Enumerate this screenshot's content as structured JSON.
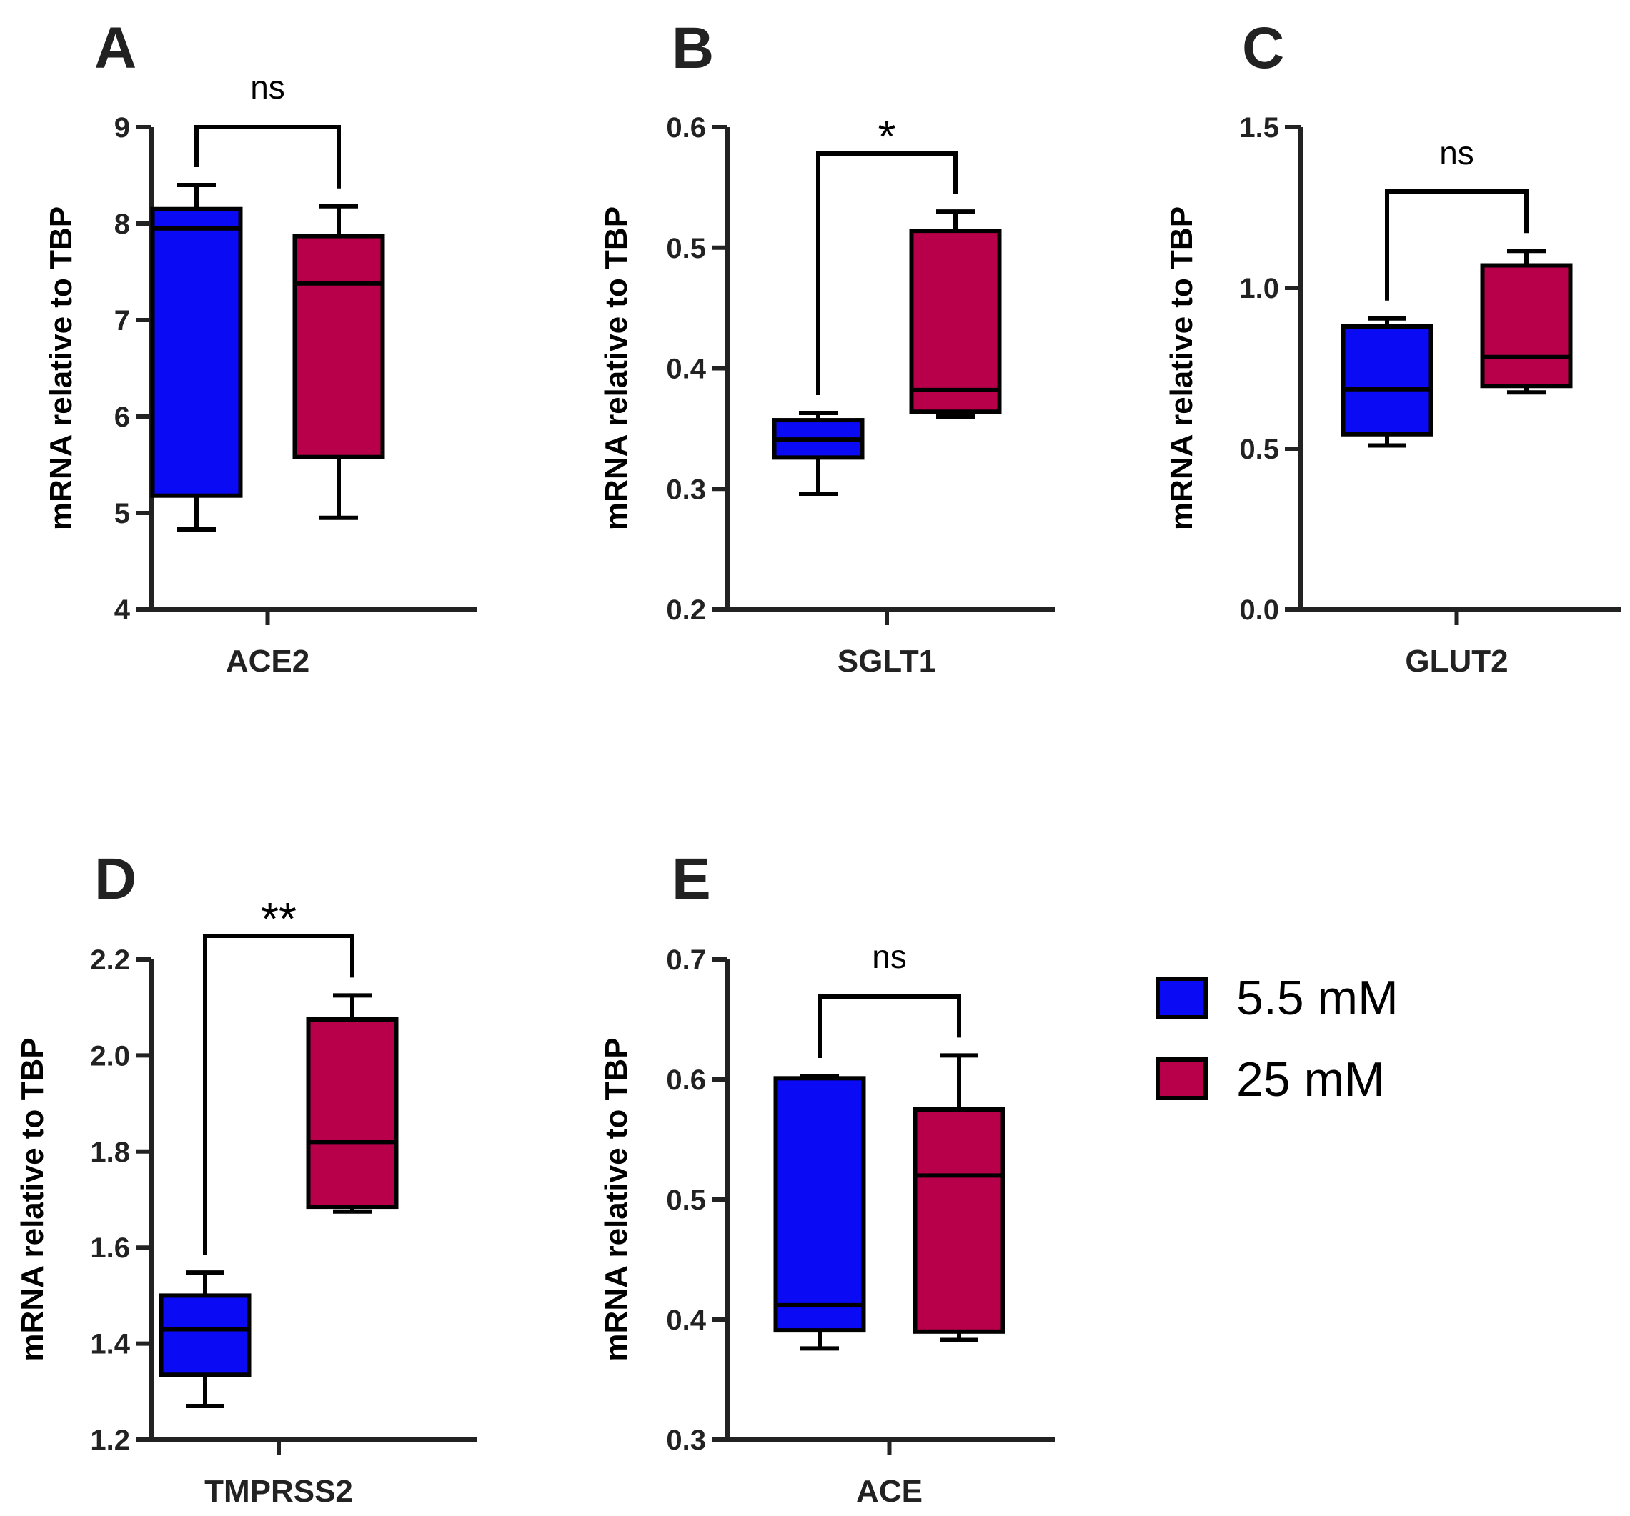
{
  "chart_data": [
    {
      "type": "box",
      "panel": "A",
      "gene": "ACE2",
      "ylabel": "mRNA relative to TBP",
      "ylim": [
        4,
        9
      ],
      "yticks": [
        "4",
        "5",
        "6",
        "7",
        "8",
        "9"
      ],
      "significance": "ns",
      "boxes": [
        {
          "group": "5.5 mM",
          "min": 4.83,
          "q1": 5.18,
          "median": 7.95,
          "q3": 8.15,
          "max": 8.4
        },
        {
          "group": "25 mM",
          "min": 4.95,
          "q1": 5.58,
          "median": 7.38,
          "q3": 7.87,
          "max": 8.18
        }
      ]
    },
    {
      "type": "box",
      "panel": "B",
      "gene": "SGLT1",
      "ylabel": "mRNA relative to TBP",
      "ylim": [
        0.2,
        0.6
      ],
      "yticks": [
        "0.2",
        "0.3",
        "0.4",
        "0.5",
        "0.6"
      ],
      "significance": "*",
      "boxes": [
        {
          "group": "5.5 mM",
          "min": 0.296,
          "q1": 0.326,
          "median": 0.341,
          "q3": 0.357,
          "max": 0.363
        },
        {
          "group": "25 mM",
          "min": 0.36,
          "q1": 0.364,
          "median": 0.382,
          "q3": 0.514,
          "max": 0.53
        }
      ]
    },
    {
      "type": "box",
      "panel": "C",
      "gene": "GLUT2",
      "ylabel": "mRNA relative to TBP",
      "ylim": [
        0.0,
        1.5
      ],
      "yticks": [
        "0.0",
        "0.5",
        "1.0",
        "1.5"
      ],
      "significance": "ns",
      "boxes": [
        {
          "group": "5.5 mM",
          "min": 0.51,
          "q1": 0.545,
          "median": 0.685,
          "q3": 0.88,
          "max": 0.905
        },
        {
          "group": "25 mM",
          "min": 0.675,
          "q1": 0.695,
          "median": 0.785,
          "q3": 1.07,
          "max": 1.115
        }
      ]
    },
    {
      "type": "box",
      "panel": "D",
      "gene": "TMPRSS2",
      "ylabel": "mRNA relative to TBP",
      "ylim": [
        1.2,
        2.2
      ],
      "yticks": [
        "1.2",
        "1.4",
        "1.6",
        "1.8",
        "2.0",
        "2.2"
      ],
      "significance": "**",
      "boxes": [
        {
          "group": "5.5 mM",
          "min": 1.27,
          "q1": 1.335,
          "median": 1.43,
          "q3": 1.5,
          "max": 1.548
        },
        {
          "group": "25 mM",
          "min": 1.675,
          "q1": 1.685,
          "median": 1.82,
          "q3": 2.075,
          "max": 2.125
        }
      ]
    },
    {
      "type": "box",
      "panel": "E",
      "gene": "ACE",
      "ylabel": "mRNA relative to TBP",
      "ylim": [
        0.3,
        0.7
      ],
      "yticks": [
        "0.3",
        "0.4",
        "0.5",
        "0.6",
        "0.7"
      ],
      "significance": "ns",
      "boxes": [
        {
          "group": "5.5 mM",
          "min": 0.376,
          "q1": 0.391,
          "median": 0.412,
          "q3": 0.601,
          "max": 0.603
        },
        {
          "group": "25 mM",
          "min": 0.383,
          "q1": 0.39,
          "median": 0.52,
          "q3": 0.575,
          "max": 0.62
        }
      ]
    }
  ],
  "legend": [
    {
      "label": "5.5 mM",
      "color": "#0a0af5"
    },
    {
      "label": "25 mM",
      "color": "#b8004a"
    }
  ]
}
